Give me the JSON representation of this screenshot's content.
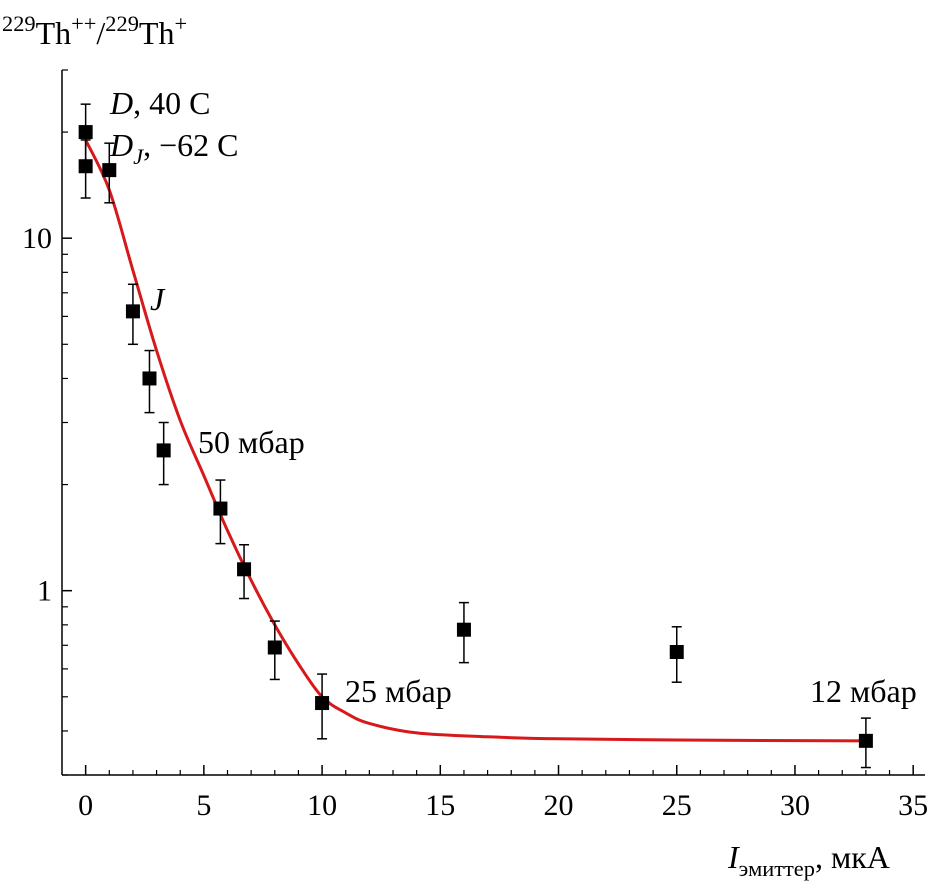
{
  "chart_data": {
    "type": "scatter",
    "y_label": [
      {
        "text": "229",
        "style": "sup"
      },
      {
        "text": "Th"
      },
      {
        "text": "++",
        "style": "sup"
      },
      {
        "text": "/"
      },
      {
        "text": "229",
        "style": "sup"
      },
      {
        "text": "Th"
      },
      {
        "text": "+",
        "style": "sup"
      }
    ],
    "x_label": [
      {
        "text": "I",
        "style": "italic"
      },
      {
        "text": "эмиттер",
        "style": "sub"
      },
      {
        "text": ", мкА"
      }
    ],
    "xlim": [
      -1,
      35.5
    ],
    "ylim": [
      0.3,
      30
    ],
    "log_y": true,
    "xticks": [
      0,
      5,
      10,
      15,
      20,
      25,
      30,
      35
    ],
    "minor_xticks": [
      1,
      2,
      3,
      4,
      6,
      7,
      8,
      9,
      11,
      12,
      13,
      14,
      16,
      17,
      18,
      19,
      21,
      22,
      23,
      24,
      26,
      27,
      28,
      29,
      31,
      32,
      33,
      34
    ],
    "yticks": [
      1,
      10
    ],
    "minor_yticks": [
      0.3,
      0.4,
      0.5,
      0.6,
      0.7,
      0.8,
      0.9,
      2,
      3,
      4,
      5,
      6,
      7,
      8,
      9,
      20,
      30
    ],
    "series": [
      {
        "color": "#000000",
        "x": [
          0,
          0,
          1,
          2,
          2.7,
          3.3,
          5.7,
          6.7,
          8,
          10,
          16,
          25,
          33
        ],
        "y": [
          20,
          16,
          15.6,
          6.2,
          4.0,
          2.5,
          1.71,
          1.15,
          0.69,
          0.48,
          0.775,
          0.67,
          0.375
        ],
        "errors": [
          4,
          3,
          3,
          1.2,
          0.8,
          0.5,
          0.35,
          0.2,
          0.13,
          0.1,
          0.15,
          0.12,
          0.06
        ]
      }
    ],
    "curve": {
      "color": "#d7191c",
      "x": [
        0,
        1,
        2,
        3,
        4,
        5,
        6,
        7,
        8,
        9,
        10,
        11,
        12,
        14,
        17,
        20,
        25,
        33
      ],
      "y": [
        19,
        13.7,
        8.1,
        4.8,
        3.04,
        2.12,
        1.48,
        1.07,
        0.8,
        0.62,
        0.5,
        0.45,
        0.42,
        0.395,
        0.385,
        0.38,
        0.377,
        0.375
      ]
    },
    "annotations": [
      [
        {
          "text": "D",
          "style": "italic"
        },
        {
          "text": ", 40 C"
        }
      ],
      [
        {
          "text": "D",
          "style": "italic"
        },
        {
          "text": "J",
          "style": "italic sub"
        },
        {
          "text": ", −62 C"
        }
      ],
      [
        {
          "text": "J",
          "style": "italic"
        }
      ],
      [
        {
          "text": "50 мбар"
        }
      ],
      [
        {
          "text": "25 мбар"
        }
      ],
      [
        {
          "text": "12 мбар"
        }
      ]
    ]
  }
}
